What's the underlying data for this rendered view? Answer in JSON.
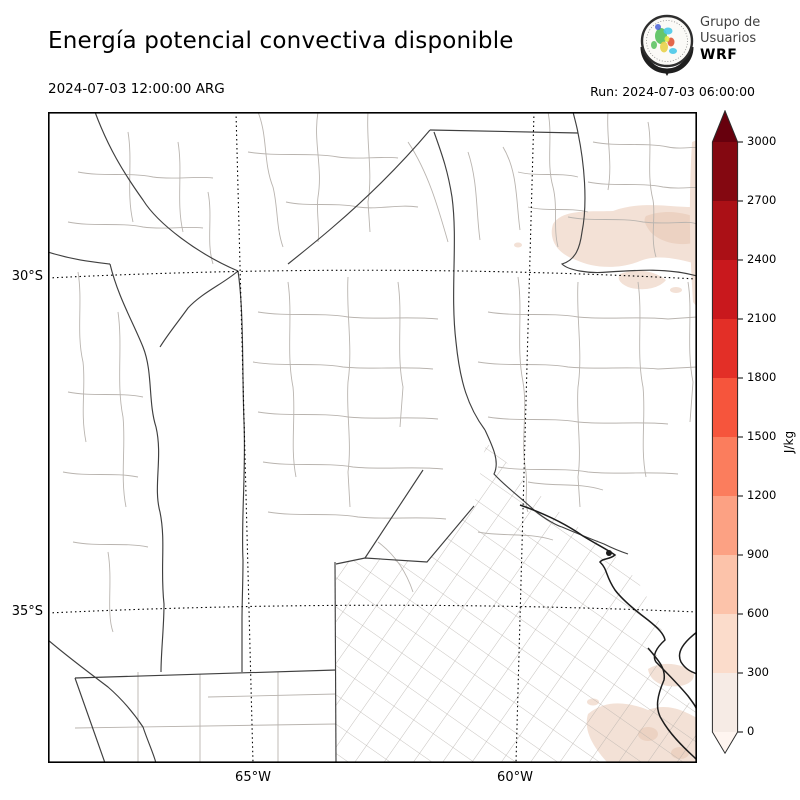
{
  "header": {
    "title": "Energía potencial convectiva disponible",
    "valid_time": "2024-07-03 12:00:00 ARG",
    "run_label": "Run: 2024-07-03 06:00:00",
    "logo": {
      "line1": "Grupo de",
      "line2": "Usuarios",
      "line3": "WRF"
    }
  },
  "map": {
    "y_ticks": [
      "30°S",
      "35°S"
    ],
    "x_ticks": [
      "65°W",
      "60°W"
    ],
    "shading": {
      "light": "#f3e1d6",
      "medium": "#ecd2c2"
    },
    "shaded_regions": [
      {
        "area": "northeast near 30°S",
        "value_range": "0-600 J/kg"
      },
      {
        "area": "southeast coast",
        "value_range": "0-600 J/kg"
      }
    ]
  },
  "colorbar": {
    "label": "J/kg",
    "ticks": [
      "3000",
      "2700",
      "2400",
      "2100",
      "1800",
      "1500",
      "1200",
      "900",
      "600",
      "300",
      "0"
    ],
    "segment_colors": [
      "#840811",
      "#ab1016",
      "#c9181d",
      "#e32f27",
      "#f6553c",
      "#fb7d5d",
      "#fca183",
      "#fcc3aa",
      "#fbdccb",
      "#f6ebe5"
    ],
    "extend_over_color": "#67000d",
    "extend_under_color": "#fff5f0"
  }
}
